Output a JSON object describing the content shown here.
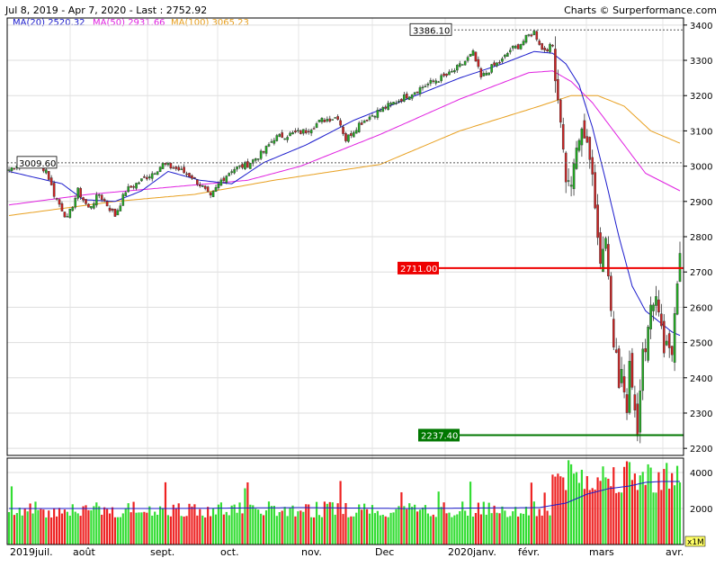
{
  "header": {
    "range_text": "Jul 8, 2019 - Apr 7, 2020 - Last : 2752.92",
    "brand_text": "Charts © Surperformance.com"
  },
  "legend": {
    "ma20": {
      "label": "MA(20)",
      "value": "2520.32",
      "color": "#1a1acc"
    },
    "ma50": {
      "label": "MA(50)",
      "value": "2931.66",
      "color": "#e020e0"
    },
    "ma100": {
      "label": "MA(100)",
      "value": "3065.23",
      "color": "#e8a020"
    }
  },
  "chart_data": {
    "type": "candlestick",
    "price_axis": {
      "ticks": [
        2200,
        2300,
        2400,
        2500,
        2600,
        2700,
        2800,
        2900,
        3000,
        3100,
        3200,
        3300,
        3400
      ],
      "range": [
        2180,
        3420
      ]
    },
    "volume_axis": {
      "ticks": [
        2000,
        4000
      ],
      "unit_label": "x1M",
      "range": [
        0,
        4800
      ]
    },
    "x_labels": [
      "2019juil.",
      "août",
      "sept.",
      "oct.",
      "nov.",
      "Dec",
      "2020janv.",
      "févr.",
      "mars",
      "avr."
    ],
    "annotations": {
      "high_marker": "3386.10",
      "prior_level": "3009.60",
      "resistance": "2711.00",
      "support": "2237.40"
    },
    "colors": {
      "up": "#22aa22",
      "down": "#cc2222",
      "support": "#007700",
      "resistance": "#ee0000"
    },
    "close_anchors": [
      [
        0,
        2990
      ],
      [
        4,
        3010
      ],
      [
        10,
        3005
      ],
      [
        14,
        2990
      ],
      [
        17,
        2920
      ],
      [
        22,
        2850
      ],
      [
        26,
        2930
      ],
      [
        30,
        2880
      ],
      [
        34,
        2920
      ],
      [
        40,
        2860
      ],
      [
        44,
        2930
      ],
      [
        50,
        2960
      ],
      [
        54,
        2980
      ],
      [
        58,
        3005
      ],
      [
        64,
        2990
      ],
      [
        69,
        2970
      ],
      [
        73,
        2940
      ],
      [
        76,
        2910
      ],
      [
        80,
        2960
      ],
      [
        84,
        2990
      ],
      [
        90,
        3005
      ],
      [
        96,
        3040
      ],
      [
        100,
        3080
      ],
      [
        106,
        3090
      ],
      [
        112,
        3100
      ],
      [
        118,
        3130
      ],
      [
        124,
        3140
      ],
      [
        127,
        3075
      ],
      [
        132,
        3120
      ],
      [
        138,
        3150
      ],
      [
        144,
        3175
      ],
      [
        150,
        3200
      ],
      [
        156,
        3225
      ],
      [
        160,
        3240
      ],
      [
        166,
        3260
      ],
      [
        171,
        3290
      ],
      [
        175,
        3320
      ],
      [
        178,
        3250
      ],
      [
        182,
        3280
      ],
      [
        186,
        3300
      ],
      [
        189,
        3330
      ],
      [
        192,
        3340
      ],
      [
        196,
        3370
      ],
      [
        198,
        3380
      ],
      [
        200,
        3350
      ],
      [
        201,
        3330
      ],
      [
        205,
        3340
      ],
      [
        206,
        3250
      ],
      [
        208,
        3130
      ],
      [
        210,
        2960
      ],
      [
        212,
        2950
      ],
      [
        214,
        3050
      ],
      [
        216,
        3100
      ],
      [
        218,
        3070
      ],
      [
        220,
        2970
      ],
      [
        221,
        2880
      ],
      [
        223,
        2730
      ],
      [
        225,
        2800
      ],
      [
        226,
        2690
      ],
      [
        228,
        2490
      ],
      [
        229,
        2480
      ],
      [
        230,
        2380
      ],
      [
        231,
        2420
      ],
      [
        233,
        2300
      ],
      [
        234,
        2440
      ],
      [
        235,
        2380
      ],
      [
        236,
        2310
      ],
      [
        237,
        2240
      ],
      [
        239,
        2490
      ],
      [
        240,
        2480
      ],
      [
        242,
        2600
      ],
      [
        244,
        2630
      ],
      [
        246,
        2550
      ],
      [
        247,
        2475
      ],
      [
        248,
        2500
      ],
      [
        250,
        2470
      ],
      [
        251,
        2580
      ],
      [
        252,
        2660
      ],
      [
        253,
        2750
      ]
    ],
    "ma20": [
      [
        0,
        2985
      ],
      [
        20,
        2950
      ],
      [
        28,
        2905
      ],
      [
        40,
        2900
      ],
      [
        50,
        2930
      ],
      [
        60,
        2985
      ],
      [
        72,
        2960
      ],
      [
        84,
        2950
      ],
      [
        96,
        3010
      ],
      [
        112,
        3060
      ],
      [
        130,
        3130
      ],
      [
        150,
        3190
      ],
      [
        170,
        3250
      ],
      [
        186,
        3290
      ],
      [
        198,
        3325
      ],
      [
        205,
        3320
      ],
      [
        210,
        3290
      ],
      [
        215,
        3230
      ],
      [
        220,
        3110
      ],
      [
        225,
        2960
      ],
      [
        230,
        2800
      ],
      [
        235,
        2660
      ],
      [
        240,
        2590
      ],
      [
        245,
        2560
      ],
      [
        250,
        2530
      ],
      [
        253,
        2520
      ]
    ],
    "ma50": [
      [
        0,
        2890
      ],
      [
        30,
        2920
      ],
      [
        60,
        2940
      ],
      [
        90,
        2960
      ],
      [
        110,
        3000
      ],
      [
        140,
        3090
      ],
      [
        170,
        3190
      ],
      [
        196,
        3265
      ],
      [
        205,
        3270
      ],
      [
        212,
        3240
      ],
      [
        220,
        3180
      ],
      [
        230,
        3080
      ],
      [
        240,
        2980
      ],
      [
        253,
        2930
      ]
    ],
    "ma100": [
      [
        0,
        2860
      ],
      [
        40,
        2900
      ],
      [
        70,
        2920
      ],
      [
        100,
        2960
      ],
      [
        140,
        3005
      ],
      [
        170,
        3100
      ],
      [
        200,
        3170
      ],
      [
        212,
        3200
      ],
      [
        222,
        3200
      ],
      [
        232,
        3170
      ],
      [
        242,
        3100
      ],
      [
        253,
        3065
      ]
    ],
    "vol_ma": [
      [
        0,
        2000
      ],
      [
        60,
        2000
      ],
      [
        110,
        2050
      ],
      [
        150,
        2000
      ],
      [
        200,
        2050
      ],
      [
        210,
        2300
      ],
      [
        218,
        2800
      ],
      [
        226,
        3100
      ],
      [
        234,
        3250
      ],
      [
        240,
        3450
      ],
      [
        246,
        3500
      ],
      [
        253,
        3500
      ]
    ]
  }
}
